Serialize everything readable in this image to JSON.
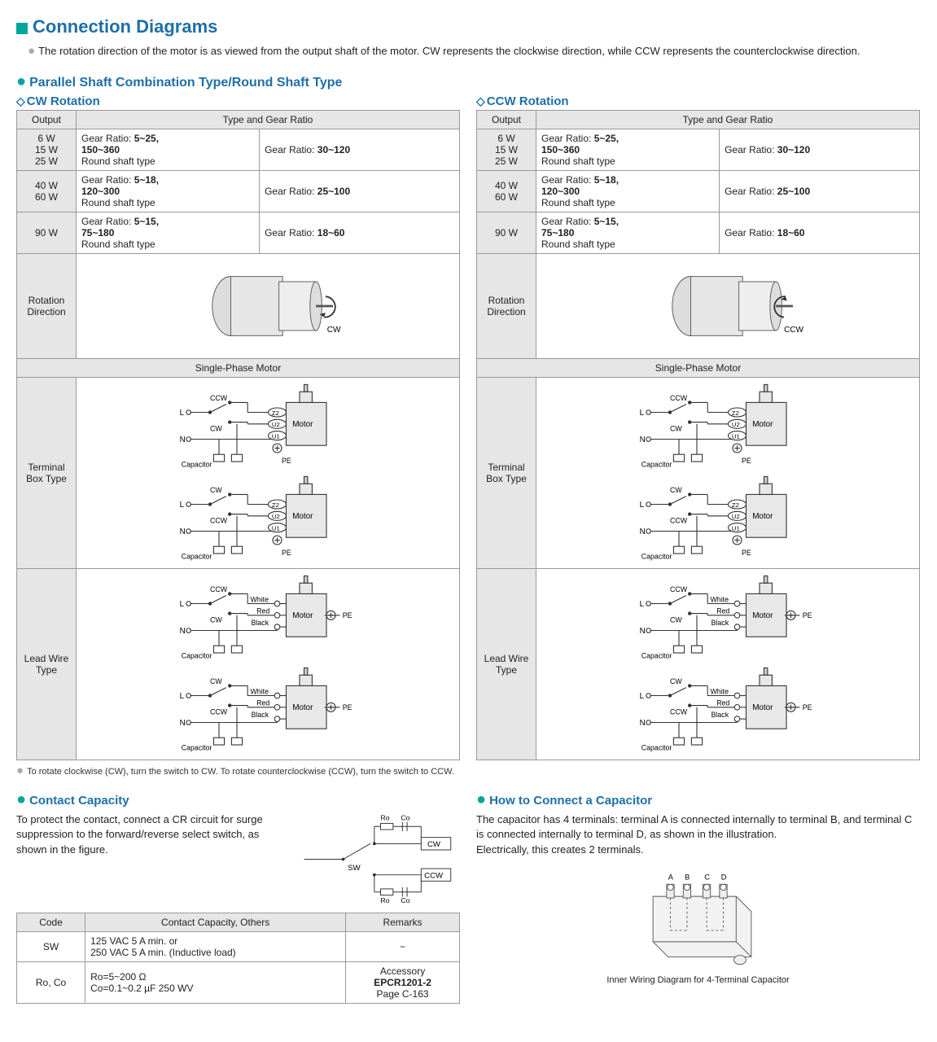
{
  "title": "Connection Diagrams",
  "intro": "The rotation direction of the motor is as viewed from the output shaft of the motor. CW represents the clockwise direction, while CCW represents the counterclockwise direction.",
  "section1_title": "Parallel Shaft Combination Type/Round Shaft Type",
  "cw_title": "CW Rotation",
  "ccw_title": "CCW Rotation",
  "headers": {
    "output": "Output",
    "tgr": "Type and Gear Ratio",
    "rotdir": "Rotation Direction",
    "spm": "Single-Phase Motor",
    "tbox": "Terminal Box Type",
    "lwt": "Lead Wire Type"
  },
  "rows": [
    {
      "output": "6 W\n15 W\n25 W",
      "left_pre": "Gear Ratio:",
      "left_bold": "5~25,\n150~360",
      "left_sub": "Round shaft type",
      "right_pre": "Gear Ratio:",
      "right_bold": "30~120"
    },
    {
      "output": "40 W\n60 W",
      "left_pre": "Gear Ratio:",
      "left_bold": "5~18,\n120~300",
      "left_sub": "Round shaft type",
      "right_pre": "Gear Ratio:",
      "right_bold": "25~100"
    },
    {
      "output": "90 W",
      "left_pre": "Gear Ratio:",
      "left_bold": "5~15,\n75~180",
      "left_sub": "Round shaft type",
      "right_pre": "Gear Ratio:",
      "right_bold": "18~60"
    }
  ],
  "cw_label": "CW",
  "ccw_label": "CCW",
  "wire_labels": {
    "L": "L",
    "N": "N",
    "Cap": "Capacitor",
    "Motor": "Motor",
    "PE": "PE",
    "Z2": "Z2",
    "U2": "U2",
    "U1": "U1",
    "White": "White",
    "Red": "Red",
    "Black": "Black"
  },
  "footnote": "To rotate clockwise (CW), turn the switch to CW. To rotate counterclockwise (CCW), turn the switch to CCW.",
  "contact_title": "Contact Capacity",
  "contact_body": "To protect the contact, connect a CR circuit for surge suppression to the forward/reverse select switch, as shown in the figure.",
  "sw_labels": {
    "Ro": "Ro",
    "Co": "Co",
    "SW": "SW",
    "CW": "CW",
    "CCW": "CCW"
  },
  "cc_headers": {
    "code": "Code",
    "spec": "Contact Capacity, Others",
    "remarks": "Remarks"
  },
  "cc_rows": [
    {
      "code": "SW",
      "spec": "125 VAC    5 A min. or\n250 VAC    5 A min. (Inductive load)",
      "remarks": "−"
    },
    {
      "code": "Ro, Co",
      "spec": "Ro=5~200 Ω\nCo=0.1~0.2 µF    250 WV",
      "remarks_top": "Accessory",
      "remarks_bold": "EPCR1201-2",
      "remarks_bot": "Page C-163"
    }
  ],
  "cap_title": "How to Connect a Capacitor",
  "cap_body": "The capacitor has 4 terminals: terminal A is connected internally to terminal B, and terminal C is connected internally to terminal D, as shown in the illustration.\nElectrically, this creates 2 terminals.",
  "cap_caption": "Inner Wiring Diagram for 4-Terminal Capacitor",
  "cap_terminals": [
    "A",
    "B",
    "C",
    "D"
  ]
}
